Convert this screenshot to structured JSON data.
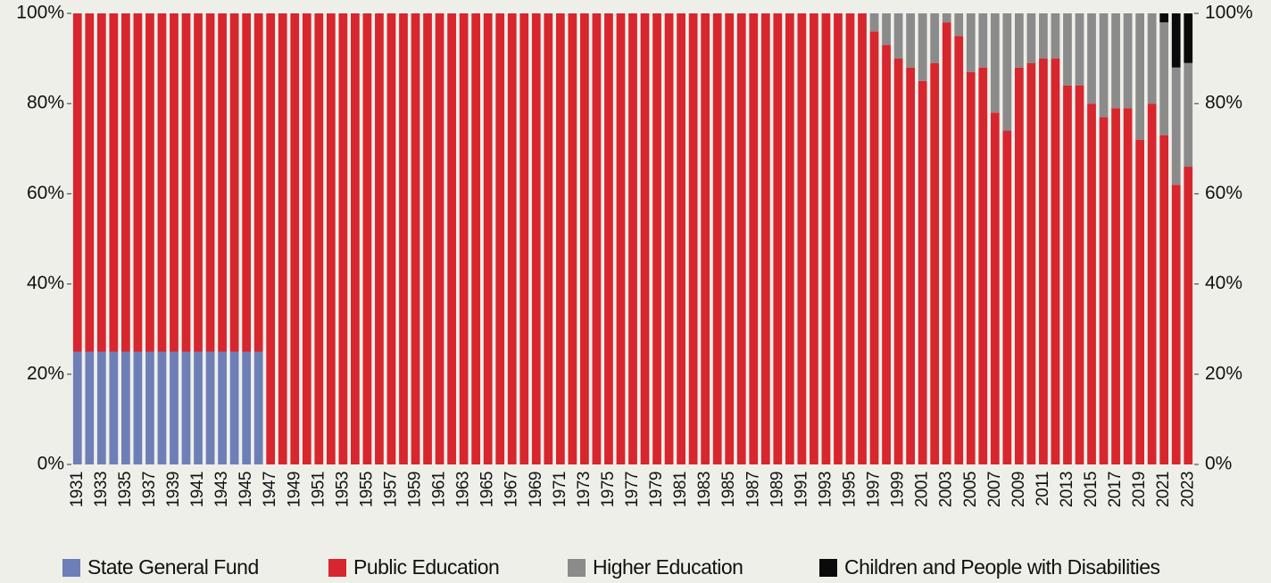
{
  "chart_data": {
    "type": "stacked_bar",
    "categories": [
      "1931",
      null,
      "1933",
      null,
      "1935",
      null,
      "1937",
      null,
      "1939",
      null,
      "1941",
      null,
      "1943",
      null,
      "1945",
      null,
      "1947",
      null,
      "1949",
      null,
      "1951",
      null,
      "1953",
      null,
      "1955",
      null,
      "1957",
      null,
      "1959",
      null,
      "1961",
      null,
      "1963",
      null,
      "1965",
      null,
      "1967",
      null,
      "1969",
      null,
      "1971",
      null,
      "1973",
      null,
      "1975",
      null,
      "1977",
      null,
      "1979",
      null,
      "1981",
      null,
      "1983",
      null,
      "1985",
      null,
      "1987",
      null,
      "1989",
      null,
      "1991",
      null,
      "1993",
      null,
      "1995",
      null,
      "1997",
      null,
      "1999",
      null,
      "2001",
      null,
      "2003",
      null,
      "2005",
      null,
      "2007",
      null,
      "2009",
      null,
      "2011",
      null,
      "2013",
      null,
      "2015",
      null,
      "2017",
      null,
      "2019",
      null,
      "2021",
      null,
      "2023"
    ],
    "series": [
      {
        "name": "State General Fund",
        "color": "#6e7fb7",
        "values": [
          25,
          25,
          25,
          25,
          25,
          25,
          25,
          25,
          25,
          25,
          25,
          25,
          25,
          25,
          25,
          25,
          0,
          0,
          0,
          0,
          0,
          0,
          0,
          0,
          0,
          0,
          0,
          0,
          0,
          0,
          0,
          0,
          0,
          0,
          0,
          0,
          0,
          0,
          0,
          0,
          0,
          0,
          0,
          0,
          0,
          0,
          0,
          0,
          0,
          0,
          0,
          0,
          0,
          0,
          0,
          0,
          0,
          0,
          0,
          0,
          0,
          0,
          0,
          0,
          0,
          0,
          0,
          0,
          0,
          0,
          0,
          0,
          0,
          0,
          0,
          0,
          0,
          0,
          0,
          0,
          0,
          0,
          0,
          0,
          0,
          0,
          0,
          0,
          0,
          0,
          0,
          0,
          0
        ]
      },
      {
        "name": "Public Education",
        "color": "#d7262e",
        "values": [
          75,
          75,
          75,
          75,
          75,
          75,
          75,
          75,
          75,
          75,
          75,
          75,
          75,
          75,
          75,
          75,
          100,
          100,
          100,
          100,
          100,
          100,
          100,
          100,
          100,
          100,
          100,
          100,
          100,
          100,
          100,
          100,
          100,
          100,
          100,
          100,
          100,
          100,
          100,
          100,
          100,
          100,
          100,
          100,
          100,
          100,
          100,
          100,
          100,
          100,
          100,
          100,
          100,
          100,
          100,
          100,
          100,
          100,
          100,
          100,
          100,
          100,
          100,
          100,
          100,
          100,
          96,
          93,
          90,
          88,
          85,
          89,
          98,
          95,
          87,
          88,
          78,
          74,
          88,
          89,
          90,
          90,
          84,
          84,
          80,
          77,
          79,
          79,
          72,
          80,
          73,
          62,
          66
        ]
      },
      {
        "name": "Higher Education",
        "color": "#8a8b8a",
        "values": [
          0,
          0,
          0,
          0,
          0,
          0,
          0,
          0,
          0,
          0,
          0,
          0,
          0,
          0,
          0,
          0,
          0,
          0,
          0,
          0,
          0,
          0,
          0,
          0,
          0,
          0,
          0,
          0,
          0,
          0,
          0,
          0,
          0,
          0,
          0,
          0,
          0,
          0,
          0,
          0,
          0,
          0,
          0,
          0,
          0,
          0,
          0,
          0,
          0,
          0,
          0,
          0,
          0,
          0,
          0,
          0,
          0,
          0,
          0,
          0,
          0,
          0,
          0,
          0,
          0,
          0,
          4,
          7,
          10,
          12,
          15,
          11,
          2,
          5,
          13,
          12,
          22,
          26,
          12,
          11,
          10,
          10,
          16,
          16,
          20,
          23,
          21,
          21,
          28,
          20,
          25,
          26,
          23
        ]
      },
      {
        "name": "Children and People with Disabilities",
        "color": "#0a0a0a",
        "values": [
          0,
          0,
          0,
          0,
          0,
          0,
          0,
          0,
          0,
          0,
          0,
          0,
          0,
          0,
          0,
          0,
          0,
          0,
          0,
          0,
          0,
          0,
          0,
          0,
          0,
          0,
          0,
          0,
          0,
          0,
          0,
          0,
          0,
          0,
          0,
          0,
          0,
          0,
          0,
          0,
          0,
          0,
          0,
          0,
          0,
          0,
          0,
          0,
          0,
          0,
          0,
          0,
          0,
          0,
          0,
          0,
          0,
          0,
          0,
          0,
          0,
          0,
          0,
          0,
          0,
          0,
          0,
          0,
          0,
          0,
          0,
          0,
          0,
          0,
          0,
          0,
          0,
          0,
          0,
          0,
          0,
          0,
          0,
          0,
          0,
          0,
          0,
          0,
          0,
          0,
          2,
          12,
          11
        ]
      }
    ],
    "ylim": [
      0,
      100
    ],
    "yticks": [
      {
        "value": 0,
        "label": "0%"
      },
      {
        "value": 20,
        "label": "20%"
      },
      {
        "value": 40,
        "label": "40%"
      },
      {
        "value": 60,
        "label": "60%"
      },
      {
        "value": 80,
        "label": "80%"
      },
      {
        "value": 100,
        "label": "100%"
      }
    ],
    "legend": "bottom"
  }
}
